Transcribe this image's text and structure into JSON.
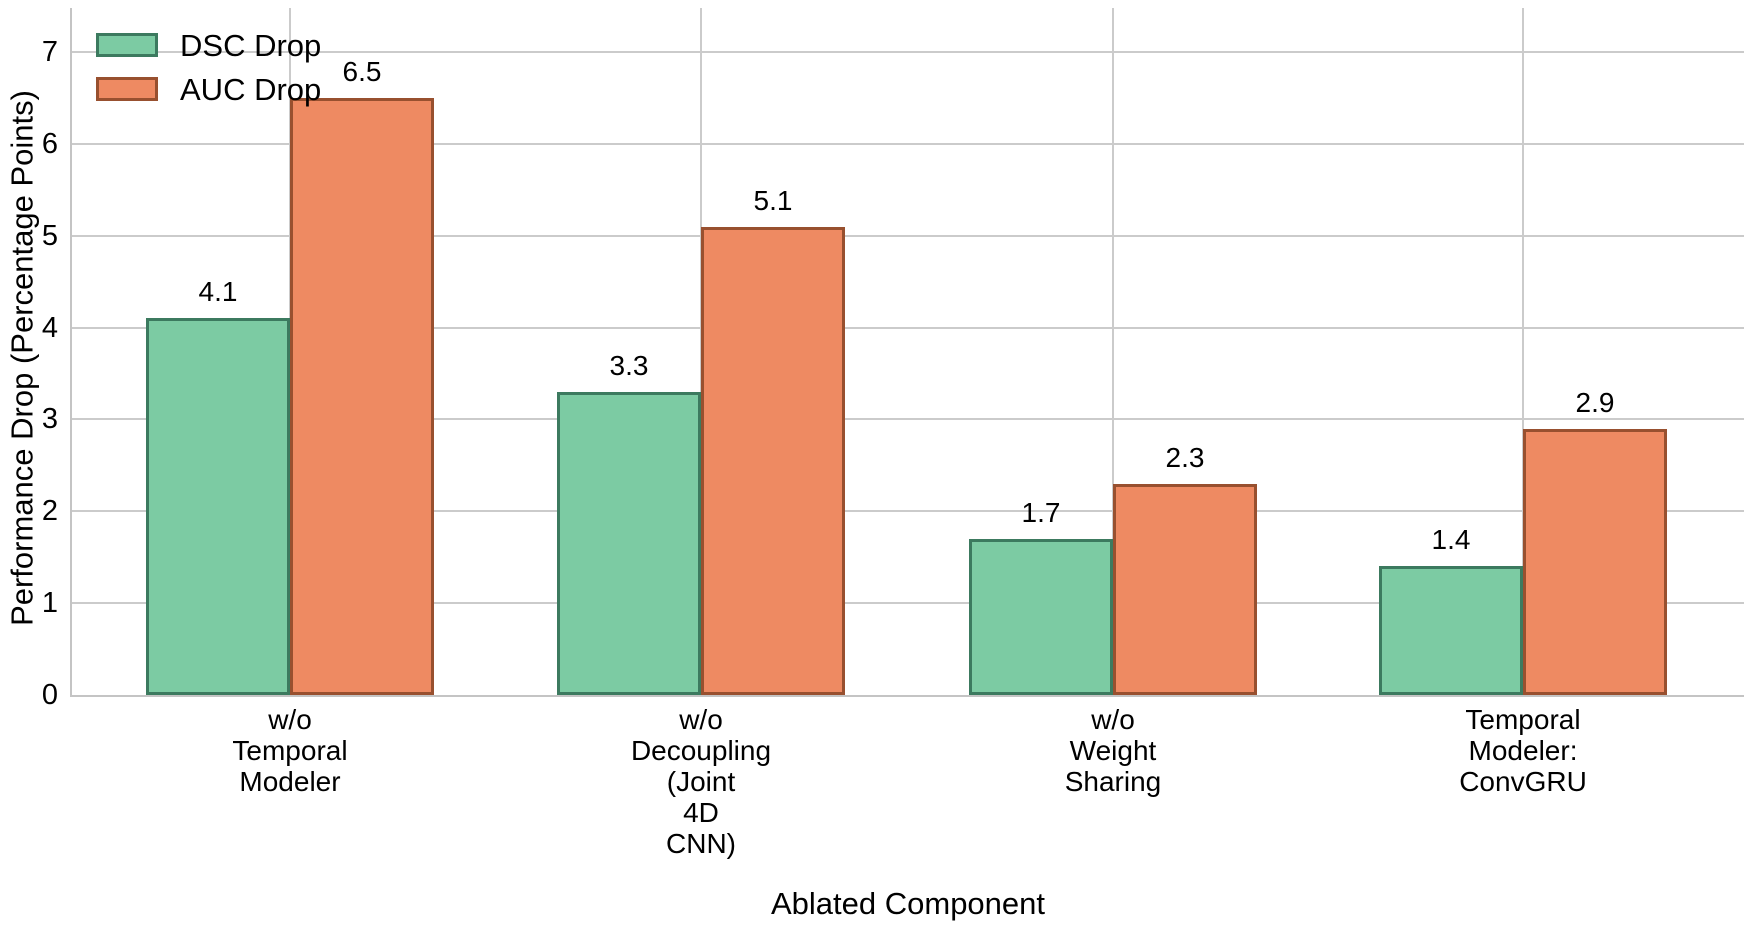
{
  "chart_data": {
    "type": "bar",
    "title": "",
    "xlabel": "Ablated Component",
    "ylabel": "Performance Drop (Percentage Points)",
    "categories": [
      "w/o Temporal Modeler",
      "w/o Decoupling (Joint 4D CNN)",
      "w/o Weight Sharing",
      "Temporal Modeler: ConvGRU"
    ],
    "category_lines": [
      [
        "w/o",
        "Temporal",
        "Modeler"
      ],
      [
        "w/o",
        "Decoupling",
        "(Joint",
        "4D",
        "CNN)"
      ],
      [
        "w/o",
        "Weight",
        "Sharing"
      ],
      [
        "Temporal",
        "Modeler:",
        "ConvGRU"
      ]
    ],
    "series": [
      {
        "name": "DSC Drop",
        "values": [
          4.1,
          3.3,
          1.7,
          1.4
        ],
        "fill": "#7ccba3",
        "edge": "#3c7a5f"
      },
      {
        "name": "AUC Drop",
        "values": [
          6.5,
          5.1,
          2.3,
          2.9
        ],
        "fill": "#ee8a62",
        "edge": "#98502f"
      }
    ],
    "yticks": [
      "0",
      "1",
      "2",
      "3",
      "4",
      "5",
      "6",
      "7"
    ],
    "ylim": [
      0,
      7.48
    ],
    "grid": true,
    "legend_position": "upper-left",
    "colors": {
      "grid": "#cbcbcb",
      "text": "#000000",
      "background": "#ffffff"
    }
  }
}
